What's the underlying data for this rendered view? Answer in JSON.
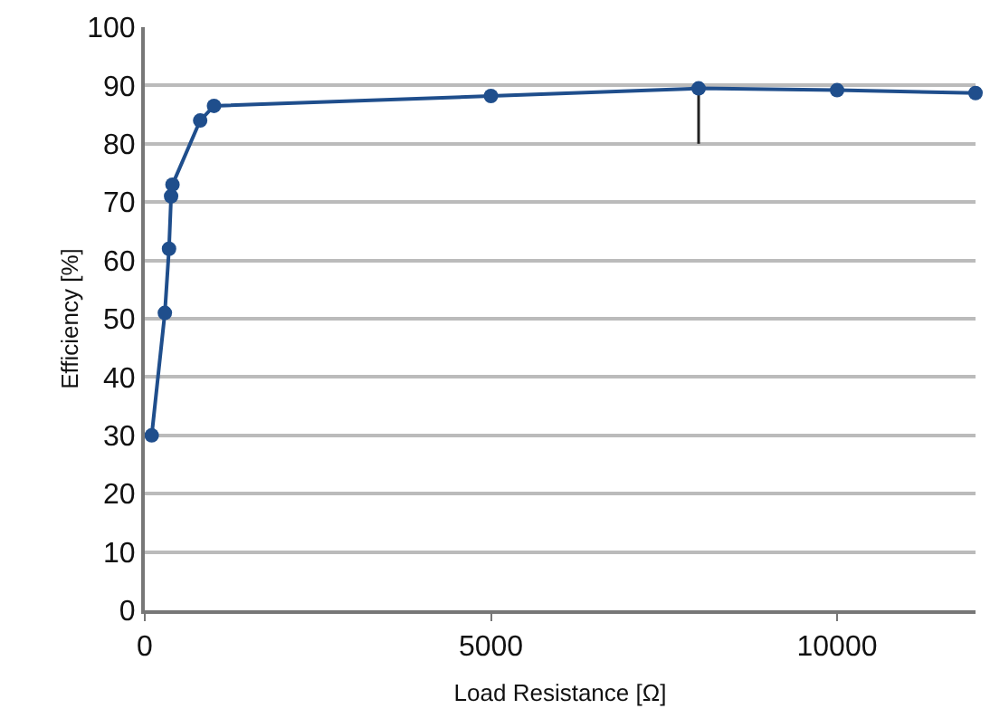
{
  "chart_data": {
    "type": "line",
    "xlabel": "Load Resistance [Ω]",
    "ylabel": "Efficiency [%]",
    "x": [
      100,
      290,
      350,
      380,
      400,
      800,
      1000,
      5000,
      8000,
      10000,
      12000
    ],
    "series": [
      {
        "color": "#1f4e8c",
        "values": [
          30,
          51,
          62,
          71,
          73,
          84,
          86.5,
          88.2,
          89.5,
          89.2,
          88.7
        ],
        "errors": [
          null,
          null,
          null,
          null,
          null,
          null,
          null,
          null,
          [
            80,
            89.5
          ],
          null,
          null
        ]
      }
    ],
    "xlim": [
      0,
      12000
    ],
    "xticks": [
      0,
      5000,
      10000
    ],
    "ylim": [
      0,
      100
    ],
    "yticks": [
      0,
      10,
      20,
      30,
      40,
      50,
      60,
      70,
      80,
      90,
      100
    ],
    "grid": "y",
    "marker": "circle",
    "line_style": "solid",
    "legend": false
  }
}
